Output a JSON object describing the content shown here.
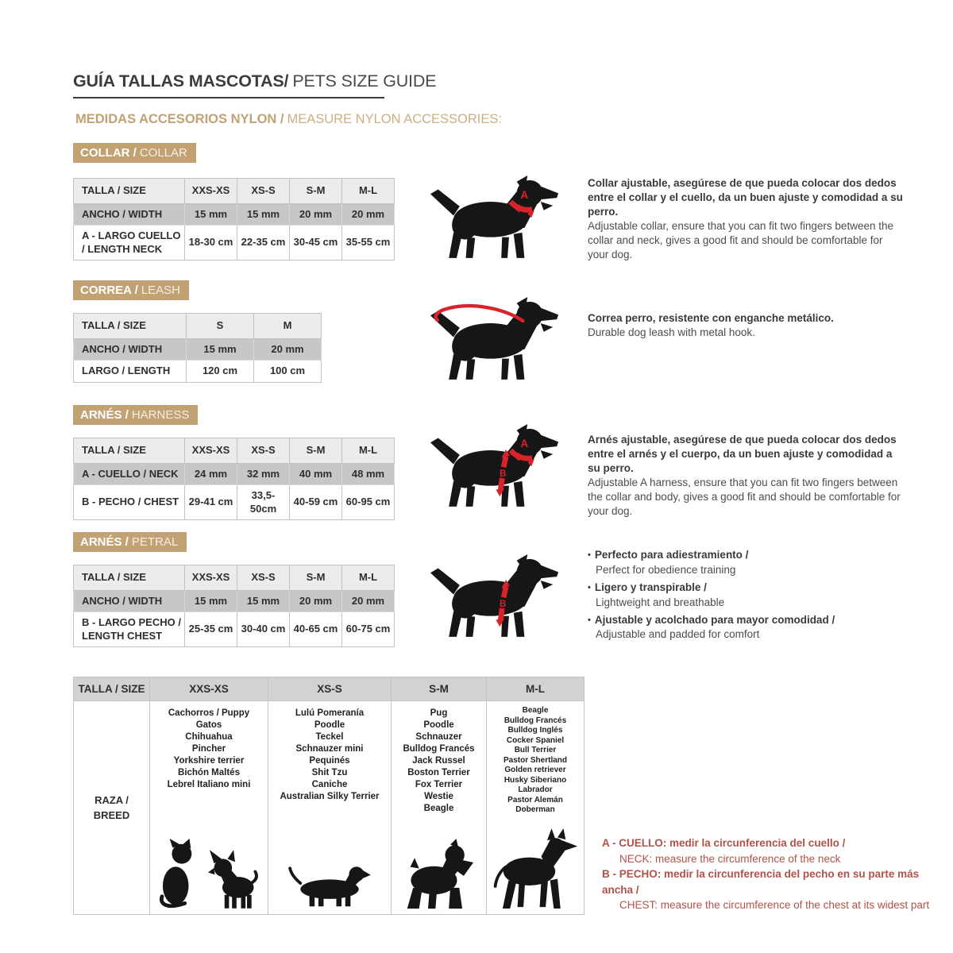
{
  "colors": {
    "accent_tan": "#C2A273",
    "note_red": "#B0524A",
    "marker_red": "#D9232A",
    "row_gray": "#C7C7C7",
    "silhouette_black": "#161616"
  },
  "header": {
    "title_es": "GUÍA TALLAS MASCOTAS/",
    "title_en": "PETS SIZE GUIDE",
    "subtitle_es": "MEDIDAS ACCESORIOS NYLON /",
    "subtitle_en": "MEASURE NYLON ACCESSORIES:"
  },
  "markers": {
    "a": "A",
    "b": "B"
  },
  "collar": {
    "badge_es": "COLLAR /",
    "badge_en": "COLLAR",
    "table": {
      "header": [
        "TALLA / SIZE",
        "XXS-XS",
        "XS-S",
        "S-M",
        "M-L"
      ],
      "rows": [
        {
          "label": "ANCHO / WIDTH",
          "values": [
            "15 mm",
            "15 mm",
            "20 mm",
            "20 mm"
          ]
        },
        {
          "label": "A - LARGO CUELLO / LENGTH NECK",
          "values": [
            "18-30 cm",
            "22-35 cm",
            "30-45 cm",
            "35-55 cm"
          ]
        }
      ]
    },
    "desc_es": "Collar ajustable, asegúrese de que pueda colocar dos dedos entre el collar y el cuello, da un buen ajuste y comodidad a su perro.",
    "desc_en": "Adjustable collar, ensure that you can fit two fingers between the collar and neck, gives a good fit and should be comfortable for your dog."
  },
  "leash": {
    "badge_es": "CORREA /",
    "badge_en": "LEASH",
    "table": {
      "header": [
        "TALLA / SIZE",
        "S",
        "M"
      ],
      "rows": [
        {
          "label": "ANCHO / WIDTH",
          "values": [
            "15 mm",
            "20 mm"
          ]
        },
        {
          "label": "LARGO / LENGTH",
          "values": [
            "120 cm",
            "100 cm"
          ]
        }
      ]
    },
    "desc_es": "Correa perro, resistente con enganche metálico.",
    "desc_en": "Durable dog leash with metal hook."
  },
  "harness": {
    "badge_es": "ARNÉS /",
    "badge_en": "HARNESS",
    "table": {
      "header": [
        "TALLA / SIZE",
        "XXS-XS",
        "XS-S",
        "S-M",
        "M-L"
      ],
      "rows": [
        {
          "label": "A - CUELLO / NECK",
          "values": [
            "24 mm",
            "32 mm",
            "40 mm",
            "48 mm"
          ]
        },
        {
          "label": "B - PECHO / CHEST",
          "values": [
            "29-41 cm",
            "33,5-50cm",
            "40-59 cm",
            "60-95 cm"
          ]
        }
      ]
    },
    "desc_es": "Arnés ajustable, asegúrese de que pueda colocar dos dedos entre el arnés y el cuerpo, da un buen ajuste y comodidad a su perro.",
    "desc_en": "Adjustable A harness, ensure that you can fit two fingers between the collar and body, gives a good fit and should be comfortable for your dog."
  },
  "petral": {
    "badge_es": "ARNÉS /",
    "badge_en": "PETRAL",
    "table": {
      "header": [
        "TALLA / SIZE",
        "XXS-XS",
        "XS-S",
        "S-M",
        "M-L"
      ],
      "rows": [
        {
          "label": "ANCHO / WIDTH",
          "values": [
            "15 mm",
            "15 mm",
            "20 mm",
            "20 mm"
          ]
        },
        {
          "label": "B - LARGO PECHO / LENGTH CHEST",
          "values": [
            "25-35 cm",
            "30-40 cm",
            "40-65 cm",
            "60-75 cm"
          ]
        }
      ]
    },
    "bullets": [
      {
        "es": "Perfecto para adiestramiento /",
        "en": "Perfect for obedience training"
      },
      {
        "es": "Ligero y transpirable /",
        "en": "Lightweight and breathable"
      },
      {
        "es": "Ajustable y acolchado para mayor comodidad /",
        "en": "Adjustable and padded for comfort"
      }
    ]
  },
  "breeds": {
    "header": [
      "TALLA /  SIZE",
      "XXS-XS",
      "XS-S",
      "S-M",
      "M-L"
    ],
    "row_label": "RAZA /\nBREED",
    "xxs_xs": [
      "Cachorros / Puppy",
      "Gatos",
      "Chihuahua",
      "Pincher",
      "Yorkshire terrier",
      "Bichón Maltés",
      "Lebrel Italiano mini"
    ],
    "xs_s": [
      "Lulú Pomeranía",
      "Poodle",
      "Teckel",
      "Schnauzer mini",
      "Pequinés",
      "Shit Tzu",
      "Caniche",
      "Australian Silky Terrier"
    ],
    "s_m": [
      "Pug",
      "Poodle",
      "Schnauzer",
      "Bulldog Francés",
      "Jack Russel",
      "Boston Terrier",
      "Fox Terrier",
      "Westie",
      "Beagle"
    ],
    "m_l": [
      "Beagle",
      "Bulldog Francés",
      "Bulldog Inglés",
      "Cocker Spaniel",
      "Bull Terrier",
      "Pastor Shertland",
      "Golden retriever",
      "Husky Siberiano",
      "Labrador",
      "Pastor Alemán",
      "Doberman"
    ]
  },
  "notes": [
    {
      "es": "A - CUELLO: medir la circunferencia del cuello /",
      "en": "NECK: measure the circumference of the neck"
    },
    {
      "es": "B - PECHO: medir la circunferencia del pecho en su parte más ancha /",
      "en": "CHEST: measure the circumference of the chest at its widest part"
    }
  ]
}
